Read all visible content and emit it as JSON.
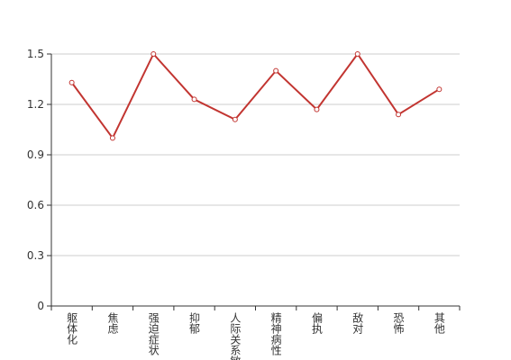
{
  "chart_data": {
    "type": "line",
    "categories": [
      "躯体化",
      "焦虑",
      "强迫症状",
      "抑郁",
      "人际关系敏感",
      "精神病性",
      "偏执",
      "敌对",
      "恐怖",
      "其他"
    ],
    "values": [
      1.33,
      1.0,
      1.5,
      1.23,
      1.11,
      1.4,
      1.17,
      1.5,
      1.14,
      1.29
    ],
    "color": "#c23531",
    "ylim": [
      0,
      1.5
    ],
    "yticks": [
      0,
      0.3,
      0.6,
      0.9,
      1.2,
      1.5
    ],
    "grid": true
  }
}
